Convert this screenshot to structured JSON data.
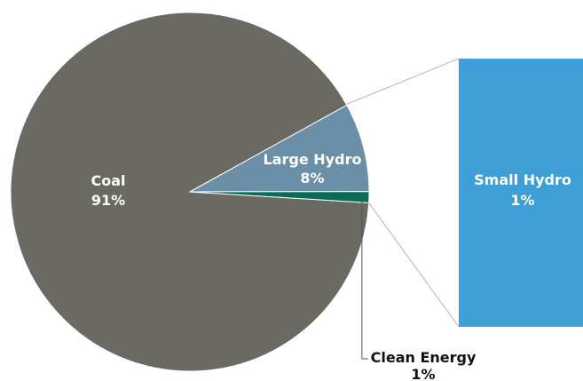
{
  "chart_data": {
    "type": "pie",
    "subtype": "pie-of-bar",
    "slices": [
      {
        "label": "Coal",
        "value": 91,
        "value_label": "91%",
        "color": "#6b6a62"
      },
      {
        "label": "Large Hydro",
        "value": 8,
        "value_label": "8%",
        "color": "#6a8fa6"
      },
      {
        "label": "Clean Energy",
        "value": 1,
        "value_label": "1%",
        "color": "#0b6b55"
      }
    ],
    "bar": {
      "label": "Small Hydro",
      "value": 1,
      "value_label": "1%",
      "color": "#3d9fd6"
    },
    "colors": {
      "slice_border": "#ffffff",
      "connector": "#b5b5b5",
      "leader": "#555555",
      "dark_text": "#111111",
      "light_text": "#ffffff"
    }
  }
}
